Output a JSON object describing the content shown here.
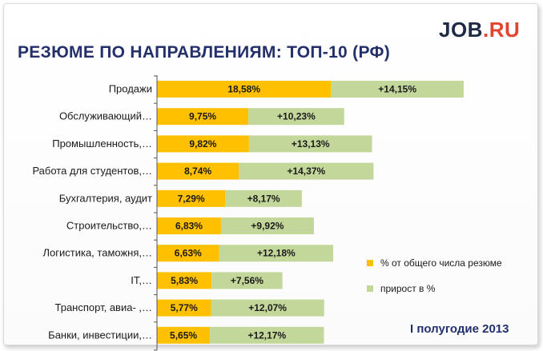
{
  "logo": {
    "part1": "JOB",
    "part2": ".RU"
  },
  "chart_data": {
    "type": "bar",
    "orientation": "horizontal",
    "stacked": true,
    "title": "РЕЗЮМЕ ПО НАПРАВЛЕНИЯМ: ТОП-10 (РФ)",
    "categories": [
      "Продажи",
      "Обслуживающий…",
      "Промышленность,…",
      "Работа для студентов,…",
      "Бухгалтерия, аудит",
      "Строительство,…",
      "Логистика, таможня,…",
      "IT,…",
      "Транспорт, авиа- ,…",
      "Банки, инвестиции,…"
    ],
    "series": [
      {
        "name": "% от общего числа резюме",
        "color": "#ffc000",
        "values": [
          18.58,
          9.75,
          9.82,
          8.74,
          7.29,
          6.83,
          6.63,
          5.83,
          5.77,
          5.65
        ],
        "labels": [
          "18,58%",
          "9,75%",
          "9,82%",
          "8,74%",
          "7,29%",
          "6,83%",
          "6,63%",
          "5,83%",
          "5,77%",
          "5,65%"
        ]
      },
      {
        "name": "прирост в %",
        "color": "#c4d79b",
        "values": [
          14.15,
          10.23,
          13.13,
          14.37,
          8.17,
          9.92,
          12.18,
          7.56,
          12.07,
          12.17
        ],
        "labels": [
          "+14,15%",
          "+10,23%",
          "+13,13%",
          "+14,37%",
          "+8,17%",
          "+9,92%",
          "+12,18%",
          "+7,56%",
          "+12,07%",
          "+12,17%"
        ]
      }
    ],
    "legend_position": "bottom-right",
    "grid": false
  },
  "period_label": "I полугодие 2013"
}
